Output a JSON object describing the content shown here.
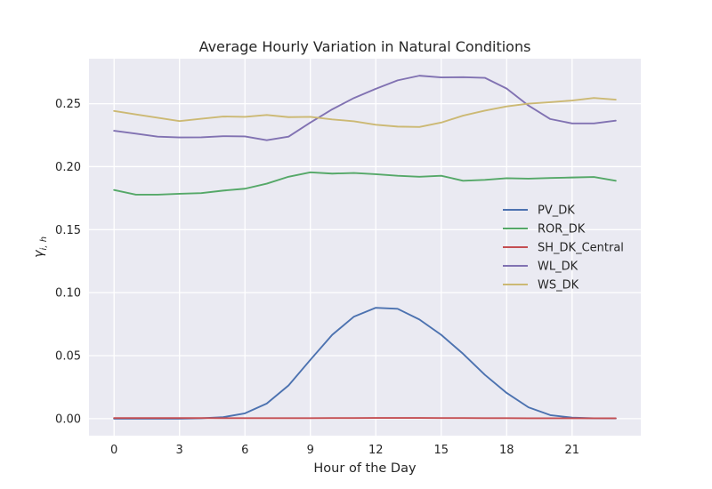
{
  "chart_data": {
    "type": "line",
    "title": "Average Hourly Variation in Natural Conditions",
    "xlabel": "Hour of the Day",
    "ylabel": "γ",
    "ylabel_subscript": "i, h",
    "xlim": [
      -1.15,
      24.15
    ],
    "ylim": [
      -0.0135,
      0.2857
    ],
    "x_ticks": [
      0,
      3,
      6,
      9,
      12,
      15,
      18,
      21
    ],
    "y_ticks": [
      0.0,
      0.05,
      0.1,
      0.15,
      0.2,
      0.25
    ],
    "y_tick_labels": [
      "0.00",
      "0.05",
      "0.10",
      "0.15",
      "0.20",
      "0.25"
    ],
    "grid": true,
    "legend_position": "center-right",
    "x": [
      0,
      1,
      2,
      3,
      4,
      5,
      6,
      7,
      8,
      9,
      10,
      11,
      12,
      13,
      14,
      15,
      16,
      17,
      18,
      19,
      20,
      21,
      22,
      23
    ],
    "series": [
      {
        "name": "PV_DK",
        "color": "#4c72b0",
        "values": [
          0.0,
          0.0,
          0.0,
          0.0,
          0.0003,
          0.0012,
          0.0042,
          0.012,
          0.0264,
          0.0467,
          0.0665,
          0.081,
          0.088,
          0.0872,
          0.0787,
          0.0665,
          0.0515,
          0.0348,
          0.0204,
          0.009,
          0.0028,
          0.0008,
          0.0003,
          0.0002
        ]
      },
      {
        "name": "ROR_DK",
        "color": "#55a868",
        "values": [
          0.1815,
          0.1778,
          0.1778,
          0.1785,
          0.179,
          0.181,
          0.1825,
          0.1865,
          0.192,
          0.1955,
          0.1945,
          0.195,
          0.194,
          0.1928,
          0.192,
          0.1928,
          0.1888,
          0.1895,
          0.1908,
          0.1905,
          0.191,
          0.1914,
          0.1918,
          0.1888
        ]
      },
      {
        "name": "SH_DK_Central",
        "color": "#c44e52",
        "values": [
          0.0005,
          0.0005,
          0.0005,
          0.0005,
          0.0005,
          0.0004,
          0.0004,
          0.0004,
          0.0004,
          0.0004,
          0.0005,
          0.0005,
          0.0006,
          0.0006,
          0.0006,
          0.0005,
          0.0005,
          0.0004,
          0.0004,
          0.0003,
          0.0003,
          0.0003,
          0.0003,
          0.0003
        ]
      },
      {
        "name": "WL_DK",
        "color": "#8172b2",
        "values": [
          0.2285,
          0.2262,
          0.2238,
          0.2232,
          0.2233,
          0.2242,
          0.224,
          0.221,
          0.2238,
          0.235,
          0.2455,
          0.2545,
          0.2618,
          0.2685,
          0.2722,
          0.2708,
          0.271,
          0.2705,
          0.262,
          0.2485,
          0.2378,
          0.2343,
          0.2343,
          0.2365
        ]
      },
      {
        "name": "WS_DK",
        "color": "#ccb974",
        "values": [
          0.2442,
          0.2415,
          0.2388,
          0.2362,
          0.238,
          0.2398,
          0.2395,
          0.241,
          0.2393,
          0.2395,
          0.2375,
          0.236,
          0.2333,
          0.2318,
          0.2315,
          0.235,
          0.2405,
          0.2445,
          0.2478,
          0.25,
          0.2512,
          0.2525,
          0.2545,
          0.2532
        ]
      }
    ]
  }
}
